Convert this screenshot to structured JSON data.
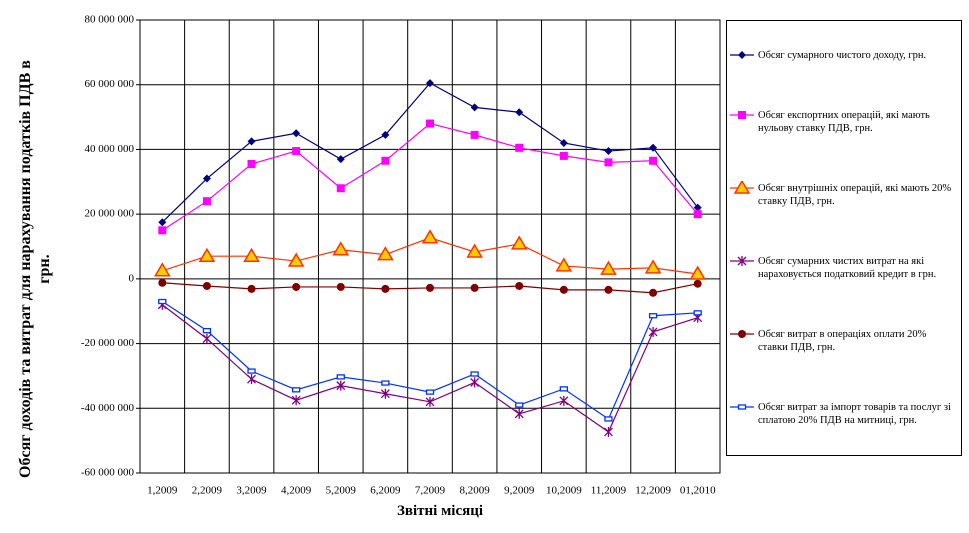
{
  "chart_data": {
    "type": "line",
    "y_label": "Обсяг доходів та витрат для нарахування податків ПДВ в грн.",
    "x_label": "Звітні місяці",
    "categories": [
      "1,2009",
      "2,2009",
      "3,2009",
      "4,2009",
      "5,2009",
      "6,2009",
      "7,2009",
      "8,2009",
      "9,2009",
      "10,2009",
      "11,2009",
      "12,2009",
      "01,2010"
    ],
    "ylim": [
      -60000000,
      80000000
    ],
    "yticks": [
      {
        "value": -60000000,
        "label": "-60 000 000"
      },
      {
        "value": -40000000,
        "label": "-40 000 000"
      },
      {
        "value": -20000000,
        "label": "-20 000 000"
      },
      0,
      {
        "value": 20000000,
        "label": "20 000 000"
      },
      {
        "value": 40000000,
        "label": "40 000 000"
      },
      {
        "value": 60000000,
        "label": "60 000 000"
      },
      {
        "value": 80000000,
        "label": "80 000 000"
      }
    ],
    "grid": true,
    "legend": "right",
    "series": [
      {
        "name": "Обсяг сумарного  чистого  доходу,  грн.",
        "color": "#000080",
        "marker": "diamond",
        "values": [
          17500000,
          31000000,
          42500000,
          45000000,
          37000000,
          44500000,
          60500000,
          53000000,
          51500000,
          42000000,
          39500000,
          40500000,
          22000000
        ]
      },
      {
        "name": "Обсяг експортних  операцій,  які мають нульову ставку ПДВ, грн.",
        "color": "#ff00ff",
        "marker": "square",
        "values": [
          15000000,
          24000000,
          35500000,
          39500000,
          28000000,
          36500000,
          48000000,
          44500000,
          40500000,
          38000000,
          36000000,
          36500000,
          20000000
        ]
      },
      {
        "name": "Обсяг внутрішніх  операцій,  які мають 20% ставку ПДВ, грн.",
        "color": "#ff3300",
        "marker": "triangle",
        "values": [
          2500000,
          7000000,
          7000000,
          5500000,
          9000000,
          7500000,
          12700000,
          8300000,
          10800000,
          4000000,
          3000000,
          3400000,
          1500000
        ]
      },
      {
        "name": "Обсяг сумарних  чистих  витрат на які нараховується  податковий  кредит  в грн.",
        "color": "#800080",
        "marker": "star",
        "values": [
          -8000000,
          -18500000,
          -31000000,
          -37500000,
          -33000000,
          -35500000,
          -38000000,
          -32000000,
          -41700000,
          -37700000,
          -47300000,
          -16400000,
          -12000000
        ]
      },
      {
        "name": "Обсяг витрат  в операціях  оплати  20% ставки ПДВ, грн.",
        "color": "#800000",
        "marker": "circle",
        "values": [
          -1200000,
          -2200000,
          -3100000,
          -2500000,
          -2500000,
          -3100000,
          -2800000,
          -2800000,
          -2200000,
          -3400000,
          -3400000,
          -4300000,
          -1500000
        ]
      },
      {
        "name": "Обсяг витрат за імпорт товарів та послуг зі сплатою 20% ПДВ на митниці, грн.",
        "color": "#0033ff",
        "marker": "rect",
        "values": [
          -7000000,
          -16000000,
          -28500000,
          -34300000,
          -30300000,
          -32200000,
          -35000000,
          -29400000,
          -39000000,
          -34000000,
          -43300000,
          -11400000,
          -10500000
        ]
      }
    ]
  }
}
